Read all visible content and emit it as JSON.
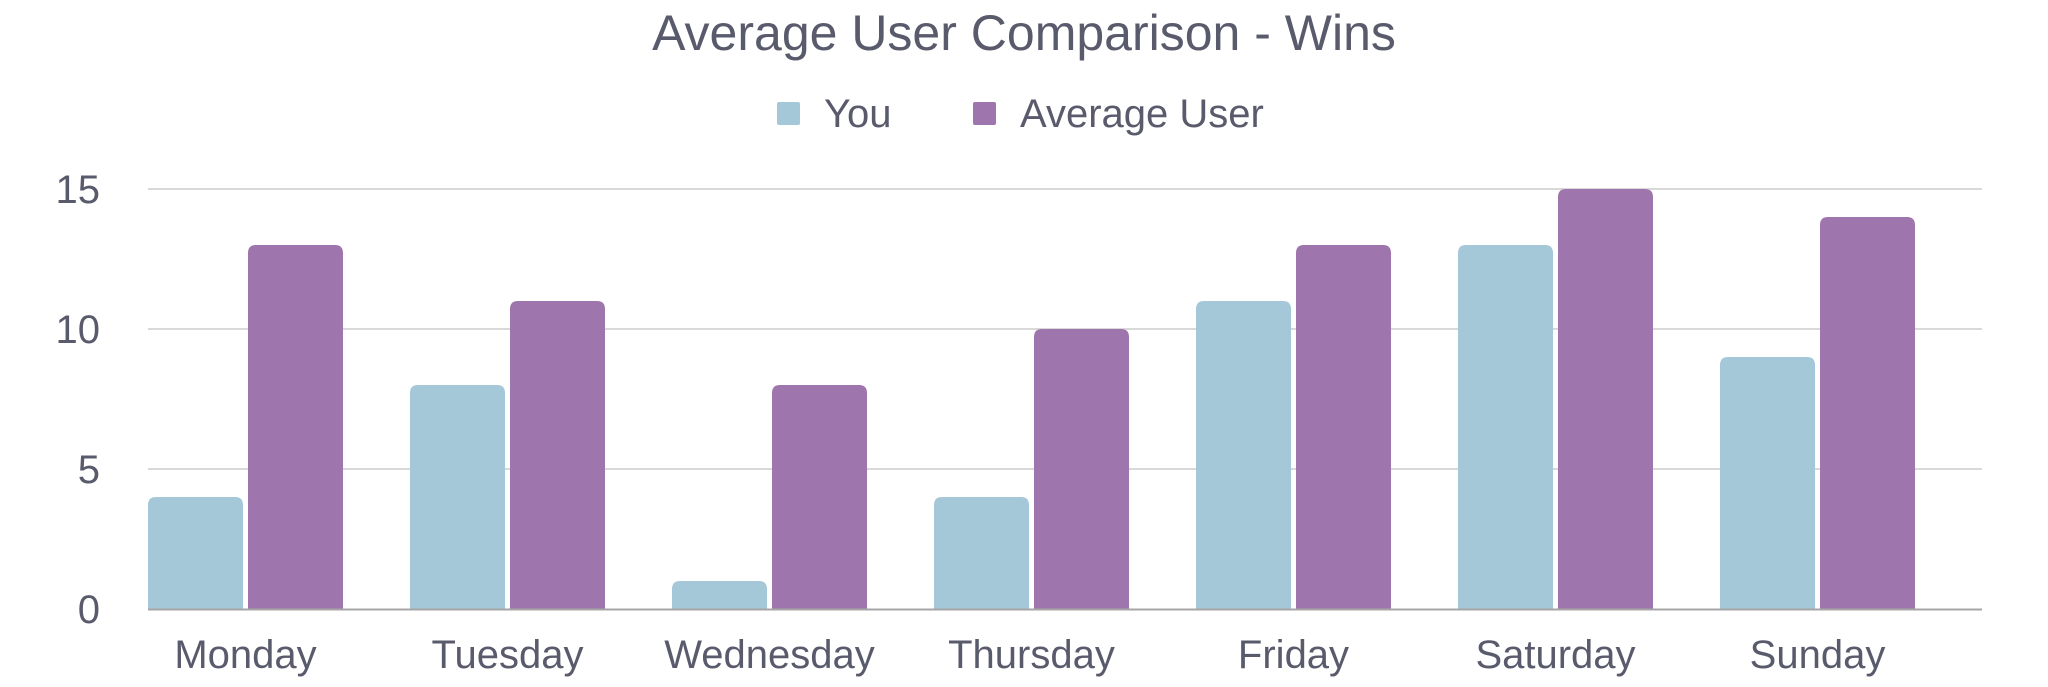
{
  "chart_data": {
    "type": "bar",
    "title": "Average User Comparison - Wins",
    "categories": [
      "Monday",
      "Tuesday",
      "Wednesday",
      "Thursday",
      "Friday",
      "Saturday",
      "Sunday"
    ],
    "series": [
      {
        "name": "You",
        "color": "#A5C8D8",
        "values": [
          4,
          8,
          1,
          4,
          11,
          13,
          9
        ]
      },
      {
        "name": "Average User",
        "color": "#9E75AC",
        "values": [
          13,
          11,
          8,
          10,
          13,
          15,
          14
        ]
      }
    ],
    "ylim": [
      0,
      15
    ],
    "yticks": [
      0,
      5,
      10,
      15
    ],
    "grid": true,
    "legend_position": "top-center",
    "xlabel": "",
    "ylabel": ""
  },
  "colors": {
    "text": "#595B6C",
    "grid": "#D9D9D9",
    "axis": "#A6A6A6"
  }
}
